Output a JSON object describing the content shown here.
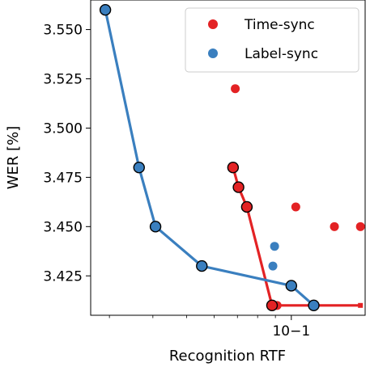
{
  "chart_data": {
    "type": "scatter",
    "xlabel": "Recognition RTF",
    "ylabel": "WER [%]",
    "xscale": "log",
    "xlim": [
      0.0265,
      0.163
    ],
    "ylim": [
      3.405,
      3.565
    ],
    "yticks": [
      3.425,
      3.45,
      3.475,
      3.5,
      3.525,
      3.55
    ],
    "ytick_labels": [
      "3.425",
      "3.450",
      "3.475",
      "3.500",
      "3.525",
      "3.550"
    ],
    "xticks": [
      0.1
    ],
    "xtick_labels": [
      "10−1"
    ],
    "legend_position": "top-right",
    "series": [
      {
        "name": "Time-sync",
        "color": "#e32224",
        "points": [
          {
            "x": 0.069,
            "y": 3.52
          },
          {
            "x": 0.103,
            "y": 3.46
          },
          {
            "x": 0.133,
            "y": 3.45
          },
          {
            "x": 0.158,
            "y": 3.45
          },
          {
            "x": 0.091,
            "y": 3.41
          }
        ],
        "frontier": [
          {
            "x": 0.068,
            "y": 3.48
          },
          {
            "x": 0.0705,
            "y": 3.47
          },
          {
            "x": 0.0745,
            "y": 3.46
          },
          {
            "x": 0.088,
            "y": 3.41
          },
          {
            "x": 0.158,
            "y": 3.41
          }
        ]
      },
      {
        "name": "Label-sync",
        "color": "#3a7fbf",
        "points": [
          {
            "x": 0.0895,
            "y": 3.44
          },
          {
            "x": 0.0885,
            "y": 3.43
          }
        ],
        "frontier": [
          {
            "x": 0.0292,
            "y": 3.56
          },
          {
            "x": 0.0365,
            "y": 3.48
          },
          {
            "x": 0.0407,
            "y": 3.45
          },
          {
            "x": 0.0553,
            "y": 3.43
          },
          {
            "x": 0.1,
            "y": 3.42
          },
          {
            "x": 0.116,
            "y": 3.41
          }
        ]
      }
    ]
  }
}
